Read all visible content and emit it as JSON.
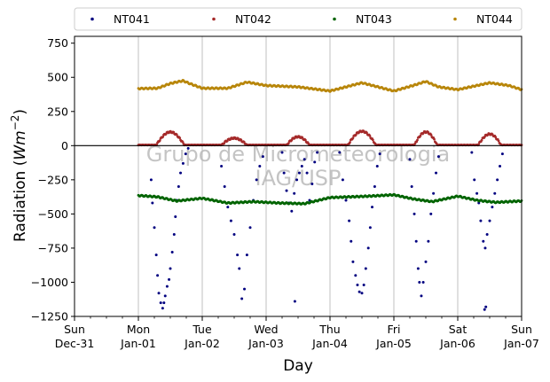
{
  "chart_data": {
    "type": "scatter",
    "ylabel": "Radiation (Wm⁻²)",
    "ylabel_base": "Radiation (",
    "ylabel_unit": "Wm",
    "ylabel_exp": "−2",
    "ylabel_close": ")",
    "xlabel": "Day",
    "watermark": [
      "Grupo de Micrometeorologia",
      "IAG/USP"
    ],
    "ylim": [
      -1250,
      800
    ],
    "yticks": [
      {
        "v": -1250,
        "label": "−1250"
      },
      {
        "v": -1000,
        "label": "−1000"
      },
      {
        "v": -750,
        "label": "−750"
      },
      {
        "v": -500,
        "label": "−500"
      },
      {
        "v": -250,
        "label": "−250"
      },
      {
        "v": 0,
        "label": "0"
      },
      {
        "v": 250,
        "label": "250"
      },
      {
        "v": 500,
        "label": "500"
      },
      {
        "v": 750,
        "label": "750"
      }
    ],
    "xlim": [
      0,
      7
    ],
    "x_unit": "days since Sun Dec-31",
    "xticks": [
      {
        "v": 0,
        "day": "Sun",
        "date": "Dec-31"
      },
      {
        "v": 1,
        "day": "Mon",
        "date": "Jan-01"
      },
      {
        "v": 2,
        "day": "Tue",
        "date": "Jan-02"
      },
      {
        "v": 3,
        "day": "Wed",
        "date": "Jan-03"
      },
      {
        "v": 4,
        "day": "Thu",
        "date": "Jan-04"
      },
      {
        "v": 5,
        "day": "Fri",
        "date": "Jan-05"
      },
      {
        "v": 6,
        "day": "Sat",
        "date": "Jan-06"
      },
      {
        "v": 7,
        "day": "Sun",
        "date": "Jan-07"
      }
    ],
    "grid": "vertical",
    "zero_line": true,
    "legend_position": "top",
    "series": [
      {
        "name": "NT041",
        "color": "#000080",
        "points": [
          [
            1.2,
            -250
          ],
          [
            1.22,
            -420
          ],
          [
            1.25,
            -600
          ],
          [
            1.28,
            -800
          ],
          [
            1.3,
            -950
          ],
          [
            1.32,
            -1080
          ],
          [
            1.35,
            -1150
          ],
          [
            1.38,
            -1190
          ],
          [
            1.4,
            -1150
          ],
          [
            1.42,
            -1100
          ],
          [
            1.45,
            -1030
          ],
          [
            1.48,
            -980
          ],
          [
            1.5,
            -900
          ],
          [
            1.53,
            -780
          ],
          [
            1.56,
            -650
          ],
          [
            1.58,
            -520
          ],
          [
            1.6,
            -400
          ],
          [
            1.63,
            -300
          ],
          [
            1.66,
            -200
          ],
          [
            1.7,
            -130
          ],
          [
            1.74,
            -60
          ],
          [
            1.78,
            -20
          ],
          [
            2.3,
            -150
          ],
          [
            2.35,
            -300
          ],
          [
            2.4,
            -450
          ],
          [
            2.45,
            -550
          ],
          [
            2.5,
            -650
          ],
          [
            2.55,
            -800
          ],
          [
            2.58,
            -900
          ],
          [
            2.62,
            -1120
          ],
          [
            2.66,
            -1050
          ],
          [
            2.7,
            -800
          ],
          [
            2.75,
            -600
          ],
          [
            2.8,
            -400
          ],
          [
            2.85,
            -250
          ],
          [
            2.9,
            -150
          ],
          [
            2.95,
            -80
          ],
          [
            3.25,
            -50
          ],
          [
            3.28,
            -200
          ],
          [
            3.32,
            -330
          ],
          [
            3.36,
            -420
          ],
          [
            3.4,
            -480
          ],
          [
            3.44,
            -350
          ],
          [
            3.48,
            -250
          ],
          [
            3.52,
            -200
          ],
          [
            3.56,
            -150
          ],
          [
            3.6,
            -100
          ],
          [
            3.64,
            -200
          ],
          [
            3.68,
            -400
          ],
          [
            3.72,
            -280
          ],
          [
            3.76,
            -120
          ],
          [
            3.8,
            -50
          ],
          [
            3.45,
            -1140
          ],
          [
            4.15,
            -50
          ],
          [
            4.2,
            -250
          ],
          [
            4.25,
            -400
          ],
          [
            4.3,
            -550
          ],
          [
            4.33,
            -700
          ],
          [
            4.36,
            -850
          ],
          [
            4.4,
            -950
          ],
          [
            4.43,
            -1020
          ],
          [
            4.46,
            -1070
          ],
          [
            4.5,
            -1080
          ],
          [
            4.53,
            -1020
          ],
          [
            4.56,
            -900
          ],
          [
            4.6,
            -750
          ],
          [
            4.63,
            -600
          ],
          [
            4.66,
            -450
          ],
          [
            4.7,
            -300
          ],
          [
            4.74,
            -150
          ],
          [
            4.78,
            -60
          ],
          [
            5.25,
            -100
          ],
          [
            5.28,
            -300
          ],
          [
            5.32,
            -500
          ],
          [
            5.35,
            -700
          ],
          [
            5.38,
            -900
          ],
          [
            5.4,
            -1000
          ],
          [
            5.43,
            -1100
          ],
          [
            5.46,
            -1000
          ],
          [
            5.5,
            -850
          ],
          [
            5.54,
            -700
          ],
          [
            5.58,
            -500
          ],
          [
            5.62,
            -350
          ],
          [
            5.66,
            -200
          ],
          [
            5.7,
            -80
          ],
          [
            6.22,
            -50
          ],
          [
            6.26,
            -250
          ],
          [
            6.3,
            -350
          ],
          [
            6.33,
            -420
          ],
          [
            6.36,
            -550
          ],
          [
            6.4,
            -700
          ],
          [
            6.43,
            -750
          ],
          [
            6.46,
            -650
          ],
          [
            6.5,
            -550
          ],
          [
            6.54,
            -450
          ],
          [
            6.58,
            -350
          ],
          [
            6.62,
            -250
          ],
          [
            6.66,
            -150
          ],
          [
            6.7,
            -60
          ],
          [
            6.42,
            -1200
          ],
          [
            6.44,
            -1180
          ]
        ]
      },
      {
        "name": "NT042",
        "color": "#a52a2a",
        "baseline": 5,
        "bumps": [
          [
            1.5,
            0.22,
            95
          ],
          [
            2.5,
            0.2,
            50
          ],
          [
            3.5,
            0.18,
            60
          ],
          [
            4.5,
            0.22,
            100
          ],
          [
            5.5,
            0.18,
            95
          ],
          [
            6.5,
            0.18,
            80
          ]
        ]
      },
      {
        "name": "NT043",
        "color": "#006400",
        "line": [
          [
            1.0,
            -365
          ],
          [
            1.3,
            -375
          ],
          [
            1.6,
            -405
          ],
          [
            2.0,
            -385
          ],
          [
            2.4,
            -420
          ],
          [
            2.8,
            -410
          ],
          [
            3.2,
            -420
          ],
          [
            3.6,
            -425
          ],
          [
            4.0,
            -380
          ],
          [
            4.3,
            -375
          ],
          [
            4.6,
            -370
          ],
          [
            5.0,
            -360
          ],
          [
            5.3,
            -390
          ],
          [
            5.6,
            -410
          ],
          [
            6.0,
            -370
          ],
          [
            6.3,
            -400
          ],
          [
            6.6,
            -415
          ],
          [
            7.0,
            -405
          ]
        ]
      },
      {
        "name": "NT044",
        "color": "#b8860b",
        "line": [
          [
            1.0,
            418
          ],
          [
            1.3,
            420
          ],
          [
            1.5,
            455
          ],
          [
            1.7,
            475
          ],
          [
            1.8,
            455
          ],
          [
            2.0,
            420
          ],
          [
            2.4,
            420
          ],
          [
            2.7,
            465
          ],
          [
            3.0,
            440
          ],
          [
            3.5,
            430
          ],
          [
            4.0,
            400
          ],
          [
            4.5,
            460
          ],
          [
            5.0,
            400
          ],
          [
            5.3,
            440
          ],
          [
            5.5,
            470
          ],
          [
            5.7,
            430
          ],
          [
            6.0,
            410
          ],
          [
            6.5,
            460
          ],
          [
            6.8,
            440
          ],
          [
            7.0,
            410
          ]
        ]
      }
    ]
  }
}
